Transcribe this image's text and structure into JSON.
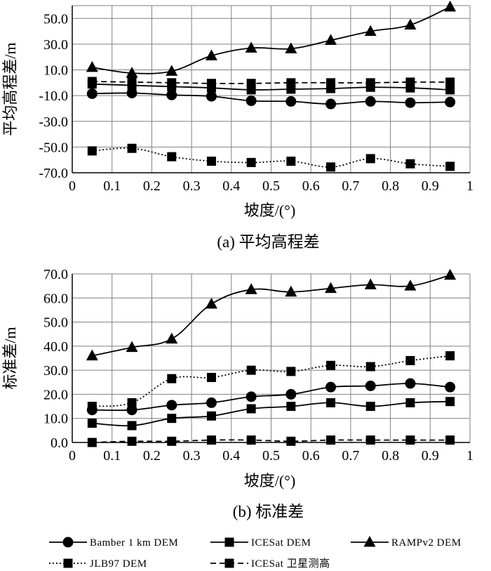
{
  "chart_data": [
    {
      "type": "line",
      "title": "(a) 平均高程差",
      "xlabel": "坡度/(°)",
      "ylabel": "平均高程差/m",
      "xlim": [
        0,
        1
      ],
      "ylim": [
        -70,
        60
      ],
      "x": [
        0.05,
        0.15,
        0.25,
        0.35,
        0.45,
        0.55,
        0.65,
        0.75,
        0.85,
        0.95
      ],
      "x_ticks": [
        "0",
        "0.1",
        "0.2",
        "0.3",
        "0.4",
        "0.5",
        "0.6",
        "0.7",
        "0.8",
        "0.9",
        "1"
      ],
      "y_ticks": [
        {
          "value": -70,
          "label": "-70.0"
        },
        {
          "value": -50,
          "label": "-50.0"
        },
        {
          "value": -30,
          "label": "-30.0"
        },
        {
          "value": -10,
          "label": "-10.0"
        },
        {
          "value": 10,
          "label": "10.0"
        },
        {
          "value": 30,
          "label": "30.0"
        },
        {
          "value": 50,
          "label": "50.0"
        }
      ],
      "series": [
        {
          "name": "Bamber 1 km DEM",
          "values": [
            -8.5,
            -8,
            -9.5,
            -10.5,
            -14,
            -14.5,
            -16.5,
            -14.5,
            -15.5,
            -15
          ]
        },
        {
          "name": "ICESat DEM",
          "values": [
            -1,
            -2,
            -3,
            -4,
            -5.5,
            -5,
            -4.5,
            -3.5,
            -4,
            -5.5
          ]
        },
        {
          "name": "RAMPv2 DEM",
          "values": [
            12,
            7.5,
            9,
            21,
            27,
            26.5,
            33,
            40,
            45,
            59
          ]
        },
        {
          "name": "JLB97 DEM",
          "values": [
            -53,
            -51,
            -57.5,
            -61,
            -62,
            -61,
            -65.5,
            -59,
            -63,
            -65
          ]
        },
        {
          "name": "ICESat 卫星测高",
          "values": [
            1,
            0.5,
            0,
            -0.5,
            -0.5,
            0,
            0,
            0,
            0.5,
            0.5
          ]
        }
      ]
    },
    {
      "type": "line",
      "title": "(b) 标准差",
      "xlabel": "坡度/(°)",
      "ylabel": "标准差/m",
      "xlim": [
        0,
        1
      ],
      "ylim": [
        0,
        70
      ],
      "x": [
        0.05,
        0.15,
        0.25,
        0.35,
        0.45,
        0.55,
        0.65,
        0.75,
        0.85,
        0.95
      ],
      "x_ticks": [
        "0",
        "0.1",
        "0.2",
        "0.3",
        "0.4",
        "0.5",
        "0.6",
        "0.7",
        "0.8",
        "0.9",
        "1"
      ],
      "y_ticks": [
        {
          "value": 0,
          "label": "0.0"
        },
        {
          "value": 10,
          "label": "10.0"
        },
        {
          "value": 20,
          "label": "20.0"
        },
        {
          "value": 30,
          "label": "30.0"
        },
        {
          "value": 40,
          "label": "40.0"
        },
        {
          "value": 50,
          "label": "50.0"
        },
        {
          "value": 60,
          "label": "60.0"
        },
        {
          "value": 70,
          "label": "70.0"
        }
      ],
      "series": [
        {
          "name": "Bamber 1 km DEM",
          "values": [
            13.5,
            13.5,
            15.5,
            16.5,
            19,
            20,
            23,
            23.5,
            24.5,
            23
          ]
        },
        {
          "name": "ICESat DEM",
          "values": [
            8,
            7,
            10,
            11,
            14,
            15,
            16.5,
            15,
            16.5,
            17
          ]
        },
        {
          "name": "RAMPv2 DEM",
          "values": [
            36,
            39.5,
            43,
            57.5,
            63.5,
            62.5,
            64,
            65.5,
            65,
            69.5
          ]
        },
        {
          "name": "JLB97 DEM",
          "values": [
            15,
            16.5,
            26.5,
            27,
            30,
            29.5,
            32,
            31.5,
            34,
            36
          ]
        },
        {
          "name": "ICESat 卫星测高",
          "values": [
            0,
            0.5,
            0.5,
            1,
            1,
            0.5,
            1,
            1,
            1,
            1
          ]
        }
      ]
    }
  ],
  "legend": [
    {
      "name": "Bamber 1 km DEM",
      "marker": "circle",
      "line": "solid"
    },
    {
      "name": "ICESat DEM",
      "marker": "square",
      "line": "solid"
    },
    {
      "name": "RAMPv2 DEM",
      "marker": "triangle",
      "line": "solid"
    },
    {
      "name": "JLB97 DEM",
      "marker": "square",
      "line": "dotted"
    },
    {
      "name": "ICESat 卫星测高",
      "marker": "square",
      "line": "dashed"
    }
  ],
  "colors": {
    "line": "#000000",
    "grid": "#808080",
    "background": "#ffffff"
  }
}
